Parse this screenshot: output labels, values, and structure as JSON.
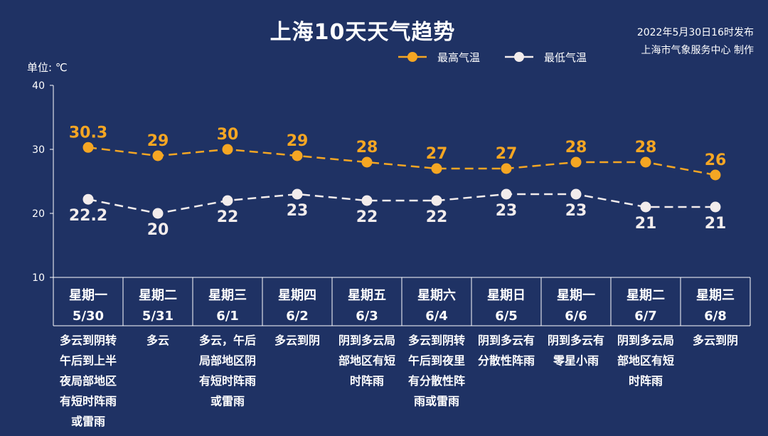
{
  "title": "上海10天天气趋势",
  "publisher": {
    "line1": "2022年5月30日16时发布",
    "line2": "上海市气象服务中心 制作"
  },
  "colors": {
    "background": "#1f3264",
    "high": "#f5a623",
    "low": "#f2ecec"
  },
  "chart_data": {
    "type": "line",
    "ylabel": "单位: ℃",
    "ylim": [
      10,
      40
    ],
    "yticks": [
      10,
      20,
      30,
      40
    ],
    "grid": false,
    "legend_placement": "top-center",
    "categories": [
      {
        "weekday": "星期一",
        "date": "5/30",
        "desc": [
          "多云到阴转",
          "午后到上半",
          "夜局部地区",
          "有短时阵雨",
          "或雷雨"
        ]
      },
      {
        "weekday": "星期二",
        "date": "5/31",
        "desc": [
          "多云"
        ]
      },
      {
        "weekday": "星期三",
        "date": "6/1",
        "desc": [
          "多云，午后",
          "局部地区阴",
          "有短时阵雨",
          "或雷雨"
        ]
      },
      {
        "weekday": "星期四",
        "date": "6/2",
        "desc": [
          "多云到阴"
        ]
      },
      {
        "weekday": "星期五",
        "date": "6/3",
        "desc": [
          "阴到多云局",
          "部地区有短",
          "时阵雨"
        ]
      },
      {
        "weekday": "星期六",
        "date": "6/4",
        "desc": [
          "多云到阴转",
          "午后到夜里",
          "有分散性阵",
          "雨或雷雨"
        ]
      },
      {
        "weekday": "星期日",
        "date": "6/5",
        "desc": [
          "阴到多云有",
          "分散性阵雨"
        ]
      },
      {
        "weekday": "星期一",
        "date": "6/6",
        "desc": [
          "阴到多云有",
          "零星小雨"
        ]
      },
      {
        "weekday": "星期二",
        "date": "6/7",
        "desc": [
          "阴到多云局",
          "部地区有短",
          "时阵雨"
        ]
      },
      {
        "weekday": "星期三",
        "date": "6/8",
        "desc": [
          "多云到阴"
        ]
      }
    ],
    "series": [
      {
        "name": "最高气温",
        "values": [
          30.3,
          29,
          30,
          29,
          28,
          27,
          27,
          28,
          28,
          26
        ],
        "labels": [
          "30.3",
          "29",
          "30",
          "29",
          "28",
          "27",
          "27",
          "28",
          "28",
          "26"
        ]
      },
      {
        "name": "最低气温",
        "values": [
          22.2,
          20,
          22,
          23,
          22,
          22,
          23,
          23,
          21,
          21
        ],
        "labels": [
          "22.2",
          "20",
          "22",
          "23",
          "22",
          "22",
          "23",
          "23",
          "21",
          "21"
        ]
      }
    ]
  }
}
